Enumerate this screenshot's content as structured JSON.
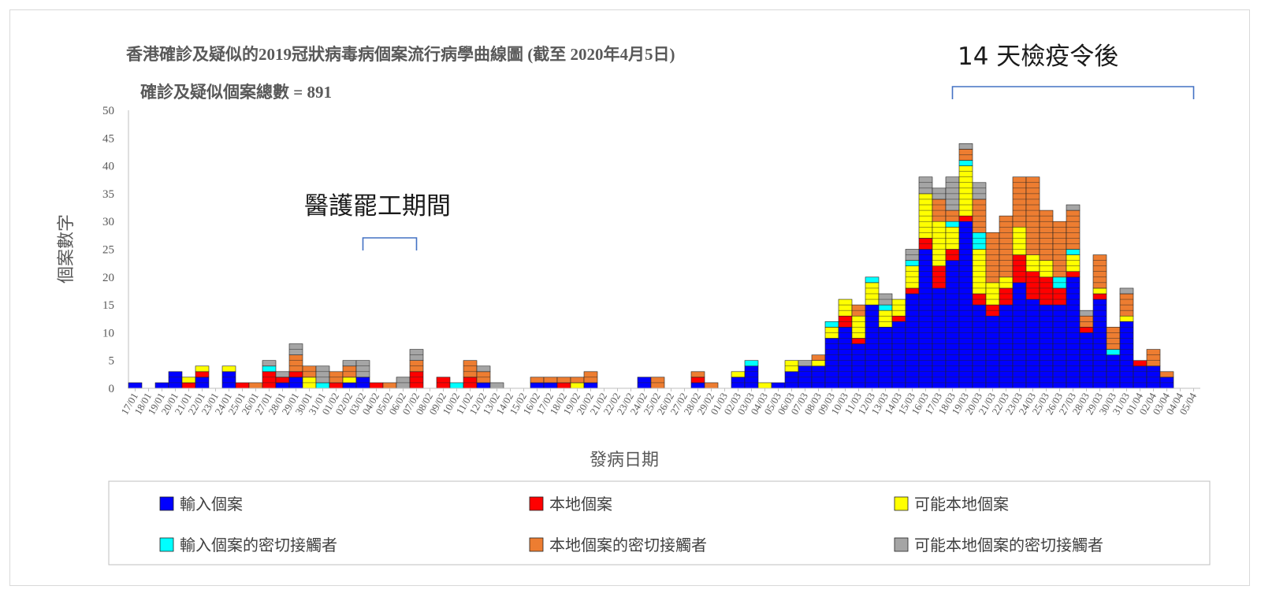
{
  "chart_data": {
    "type": "bar",
    "stacked": true,
    "title": "香港確診及疑似的2019冠狀病毒病個案流行病學曲線圖 (截至 2020年4月5日)",
    "subtitle": "確診及疑似個案總數 = 891",
    "xlabel": "發病日期",
    "ylabel": "個案數字",
    "ylim": [
      0,
      50
    ],
    "yticks": [
      0,
      5,
      10,
      15,
      20,
      25,
      30,
      35,
      40,
      45,
      50
    ],
    "legend_position": "bottom",
    "annotations": {
      "strike_label": "醫護罷工期間",
      "strike_range": [
        "03/02",
        "07/02"
      ],
      "quarantine_label": "14 天檢疫令後",
      "quarantine_range": [
        "18/03",
        "05/04"
      ]
    },
    "categories": [
      "17/01",
      "18/01",
      "19/01",
      "20/01",
      "21/01",
      "22/01",
      "23/01",
      "24/01",
      "25/01",
      "26/01",
      "27/01",
      "28/01",
      "29/01",
      "30/01",
      "31/01",
      "01/02",
      "02/02",
      "03/02",
      "04/02",
      "05/02",
      "06/02",
      "07/02",
      "08/02",
      "09/02",
      "10/02",
      "11/02",
      "12/02",
      "13/02",
      "14/02",
      "15/02",
      "16/02",
      "17/02",
      "18/02",
      "19/02",
      "20/02",
      "21/02",
      "22/02",
      "23/02",
      "24/02",
      "25/02",
      "26/02",
      "27/02",
      "28/02",
      "29/02",
      "01/03",
      "02/03",
      "03/03",
      "04/03",
      "05/03",
      "06/03",
      "07/03",
      "08/03",
      "09/03",
      "10/03",
      "11/03",
      "12/03",
      "13/03",
      "14/03",
      "15/03",
      "16/03",
      "17/03",
      "18/03",
      "19/03",
      "20/03",
      "21/03",
      "22/03",
      "23/03",
      "24/03",
      "25/03",
      "26/03",
      "27/03",
      "28/03",
      "29/03",
      "30/03",
      "31/03",
      "01/04",
      "02/04",
      "03/04",
      "04/04",
      "05/04"
    ],
    "series": [
      {
        "name": "輸入個案",
        "color": "#0000ff",
        "values": [
          1,
          0,
          1,
          3,
          0,
          2,
          0,
          3,
          0,
          0,
          0,
          1,
          2,
          0,
          0,
          0,
          1,
          2,
          0,
          0,
          0,
          0,
          0,
          0,
          0,
          0,
          1,
          0,
          0,
          0,
          1,
          1,
          0,
          0,
          1,
          0,
          0,
          0,
          2,
          0,
          0,
          0,
          1,
          0,
          0,
          2,
          4,
          0,
          1,
          3,
          4,
          4,
          9,
          11,
          8,
          15,
          11,
          12,
          17,
          25,
          18,
          23,
          30,
          15,
          13,
          15,
          19,
          16,
          15,
          15,
          20,
          10,
          16,
          6,
          12,
          4,
          4,
          2,
          0,
          0
        ]
      },
      {
        "name": "本地個案",
        "color": "#ff0000",
        "values": [
          0,
          0,
          0,
          0,
          1,
          1,
          0,
          0,
          1,
          0,
          3,
          1,
          1,
          0,
          0,
          1,
          0,
          0,
          1,
          0,
          0,
          3,
          0,
          2,
          0,
          2,
          0,
          0,
          0,
          0,
          0,
          0,
          1,
          0,
          0,
          0,
          0,
          0,
          0,
          0,
          0,
          0,
          1,
          0,
          0,
          0,
          0,
          0,
          0,
          0,
          0,
          0,
          0,
          2,
          1,
          0,
          0,
          1,
          1,
          2,
          4,
          2,
          1,
          2,
          2,
          3,
          5,
          5,
          5,
          3,
          1,
          1,
          1,
          0,
          0,
          1,
          0,
          0,
          0,
          0
        ]
      },
      {
        "name": "可能本地個案",
        "color": "#ffff00",
        "values": [
          0,
          0,
          0,
          0,
          1,
          1,
          0,
          1,
          0,
          0,
          0,
          0,
          0,
          2,
          0,
          0,
          1,
          0,
          0,
          0,
          0,
          0,
          0,
          0,
          0,
          0,
          0,
          0,
          0,
          0,
          0,
          0,
          0,
          1,
          0,
          0,
          0,
          0,
          0,
          0,
          0,
          0,
          0,
          0,
          0,
          1,
          0,
          1,
          0,
          2,
          0,
          1,
          2,
          3,
          4,
          4,
          3,
          3,
          4,
          8,
          8,
          4,
          9,
          8,
          4,
          2,
          5,
          3,
          3,
          0,
          3,
          0,
          1,
          0,
          1,
          0,
          0,
          0,
          0,
          0
        ]
      },
      {
        "name": "輸入個案的密切接觸者",
        "color": "#00ffff",
        "values": [
          0,
          0,
          0,
          0,
          0,
          0,
          0,
          0,
          0,
          0,
          1,
          0,
          0,
          0,
          1,
          0,
          0,
          0,
          0,
          0,
          0,
          0,
          0,
          0,
          1,
          0,
          0,
          0,
          0,
          0,
          0,
          0,
          0,
          0,
          0,
          0,
          0,
          0,
          0,
          0,
          0,
          0,
          0,
          0,
          0,
          0,
          1,
          0,
          0,
          0,
          0,
          0,
          1,
          0,
          0,
          1,
          1,
          0,
          1,
          0,
          0,
          1,
          1,
          3,
          0,
          0,
          0,
          0,
          0,
          2,
          1,
          0,
          0,
          1,
          0,
          0,
          0,
          0,
          0,
          0
        ]
      },
      {
        "name": "本地個案的密切接觸者",
        "color": "#ed7d31",
        "values": [
          0,
          0,
          0,
          0,
          0,
          0,
          0,
          0,
          0,
          1,
          0,
          0,
          3,
          2,
          0,
          2,
          2,
          0,
          0,
          1,
          0,
          2,
          0,
          0,
          0,
          3,
          2,
          0,
          0,
          0,
          1,
          1,
          1,
          1,
          2,
          0,
          0,
          0,
          0,
          2,
          0,
          0,
          1,
          1,
          0,
          0,
          0,
          0,
          0,
          0,
          0,
          1,
          0,
          0,
          2,
          0,
          0,
          0,
          0,
          0,
          4,
          2,
          2,
          6,
          9,
          11,
          9,
          14,
          9,
          10,
          7,
          2,
          6,
          4,
          4,
          0,
          3,
          1,
          0,
          0
        ]
      },
      {
        "name": "可能本地個案的密切接觸者",
        "color": "#a5a5a5",
        "values": [
          0,
          0,
          0,
          0,
          0,
          0,
          0,
          0,
          0,
          0,
          1,
          1,
          2,
          0,
          3,
          0,
          1,
          3,
          0,
          0,
          2,
          2,
          0,
          0,
          0,
          0,
          1,
          1,
          0,
          0,
          0,
          0,
          0,
          0,
          0,
          0,
          0,
          0,
          0,
          0,
          0,
          0,
          0,
          0,
          0,
          0,
          0,
          0,
          0,
          0,
          1,
          0,
          0,
          0,
          0,
          0,
          2,
          0,
          2,
          3,
          2,
          6,
          1,
          3,
          0,
          0,
          0,
          0,
          0,
          0,
          1,
          1,
          0,
          0,
          1,
          0,
          0,
          0,
          0,
          0
        ]
      }
    ]
  }
}
